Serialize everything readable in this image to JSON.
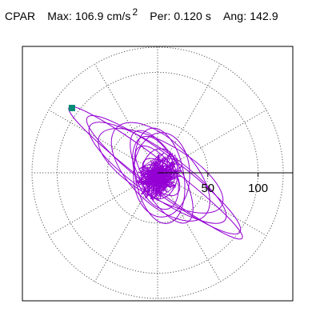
{
  "header": {
    "station": "CPAR",
    "max_label": "Max:",
    "max_value": "106.9 cm/s",
    "max_exponent": "2",
    "per_label": "Per:",
    "per_value": "0.120 s",
    "ang_label": "Ang:",
    "ang_value": "142.9"
  },
  "chart_data": {
    "type": "polar-particle-motion",
    "units": "cm/s2",
    "radial_ticks": [
      50,
      100
    ],
    "radial_tick_labels": [
      "50",
      "100"
    ],
    "rmax": 125,
    "spoke_angles_deg": [
      0,
      30,
      60,
      90,
      120,
      150,
      180,
      210,
      240,
      270,
      300,
      330
    ],
    "max_amplitude": 106.9,
    "max_angle_deg": 142.9,
    "trace_color": "#9400d3",
    "marker_color": "#008b74",
    "ellipses": [
      {
        "a": 108,
        "b": 13,
        "rot": 142.9,
        "cx": -2,
        "cy": 0
      },
      {
        "a": 95,
        "b": 18,
        "rot": 143,
        "cx": 6,
        "cy": -2
      },
      {
        "a": 82,
        "b": 22,
        "rot": 145,
        "cx": 0,
        "cy": 0
      },
      {
        "a": 70,
        "b": 27,
        "rot": 150,
        "cx": 3,
        "cy": 2
      },
      {
        "a": 62,
        "b": 31,
        "rot": 135,
        "cx": 3,
        "cy": 1
      },
      {
        "a": 52,
        "b": 20,
        "rot": 120,
        "cx": 4,
        "cy": -4
      },
      {
        "a": 48,
        "b": 24,
        "rot": 100,
        "cx": 2,
        "cy": -3
      },
      {
        "a": 42,
        "b": 28,
        "rot": 90,
        "cx": 4,
        "cy": -2
      },
      {
        "a": 38,
        "b": 20,
        "rot": 110,
        "cx": -2,
        "cy": 0
      },
      {
        "a": 30,
        "b": 14,
        "rot": 130,
        "cx": 0,
        "cy": 2
      },
      {
        "a": 25,
        "b": 18,
        "rot": 85,
        "cx": 2,
        "cy": -1
      },
      {
        "a": 18,
        "b": 10,
        "rot": 145,
        "cx": 1,
        "cy": 1
      }
    ]
  }
}
